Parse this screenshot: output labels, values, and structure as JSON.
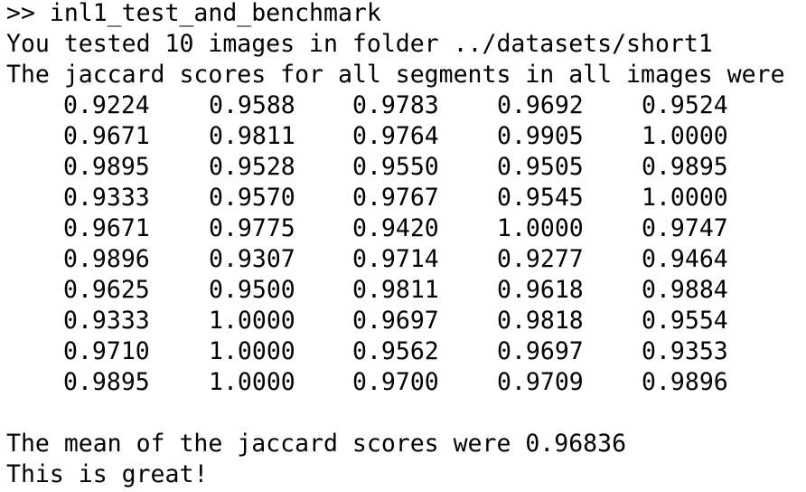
{
  "terminal": {
    "command_line": ">> inl1_test_and_benchmark",
    "info_line": "You tested 10 images in folder ../datasets/short1",
    "header_line": "The jaccard scores for all segments in all images were",
    "scores": [
      [
        "0.9224",
        "0.9588",
        "0.9783",
        "0.9692",
        "0.9524"
      ],
      [
        "0.9671",
        "0.9811",
        "0.9764",
        "0.9905",
        "1.0000"
      ],
      [
        "0.9895",
        "0.9528",
        "0.9550",
        "0.9505",
        "0.9895"
      ],
      [
        "0.9333",
        "0.9570",
        "0.9767",
        "0.9545",
        "1.0000"
      ],
      [
        "0.9671",
        "0.9775",
        "0.9420",
        "1.0000",
        "0.9747"
      ],
      [
        "0.9896",
        "0.9307",
        "0.9714",
        "0.9277",
        "0.9464"
      ],
      [
        "0.9625",
        "0.9500",
        "0.9811",
        "0.9618",
        "0.9884"
      ],
      [
        "0.9333",
        "1.0000",
        "0.9697",
        "0.9818",
        "0.9554"
      ],
      [
        "0.9710",
        "1.0000",
        "0.9562",
        "0.9697",
        "0.9353"
      ],
      [
        "0.9895",
        "1.0000",
        "0.9700",
        "0.9709",
        "0.9896"
      ]
    ],
    "mean_line": "The mean of the jaccard scores were 0.96836",
    "verdict_line": "This is great!"
  }
}
